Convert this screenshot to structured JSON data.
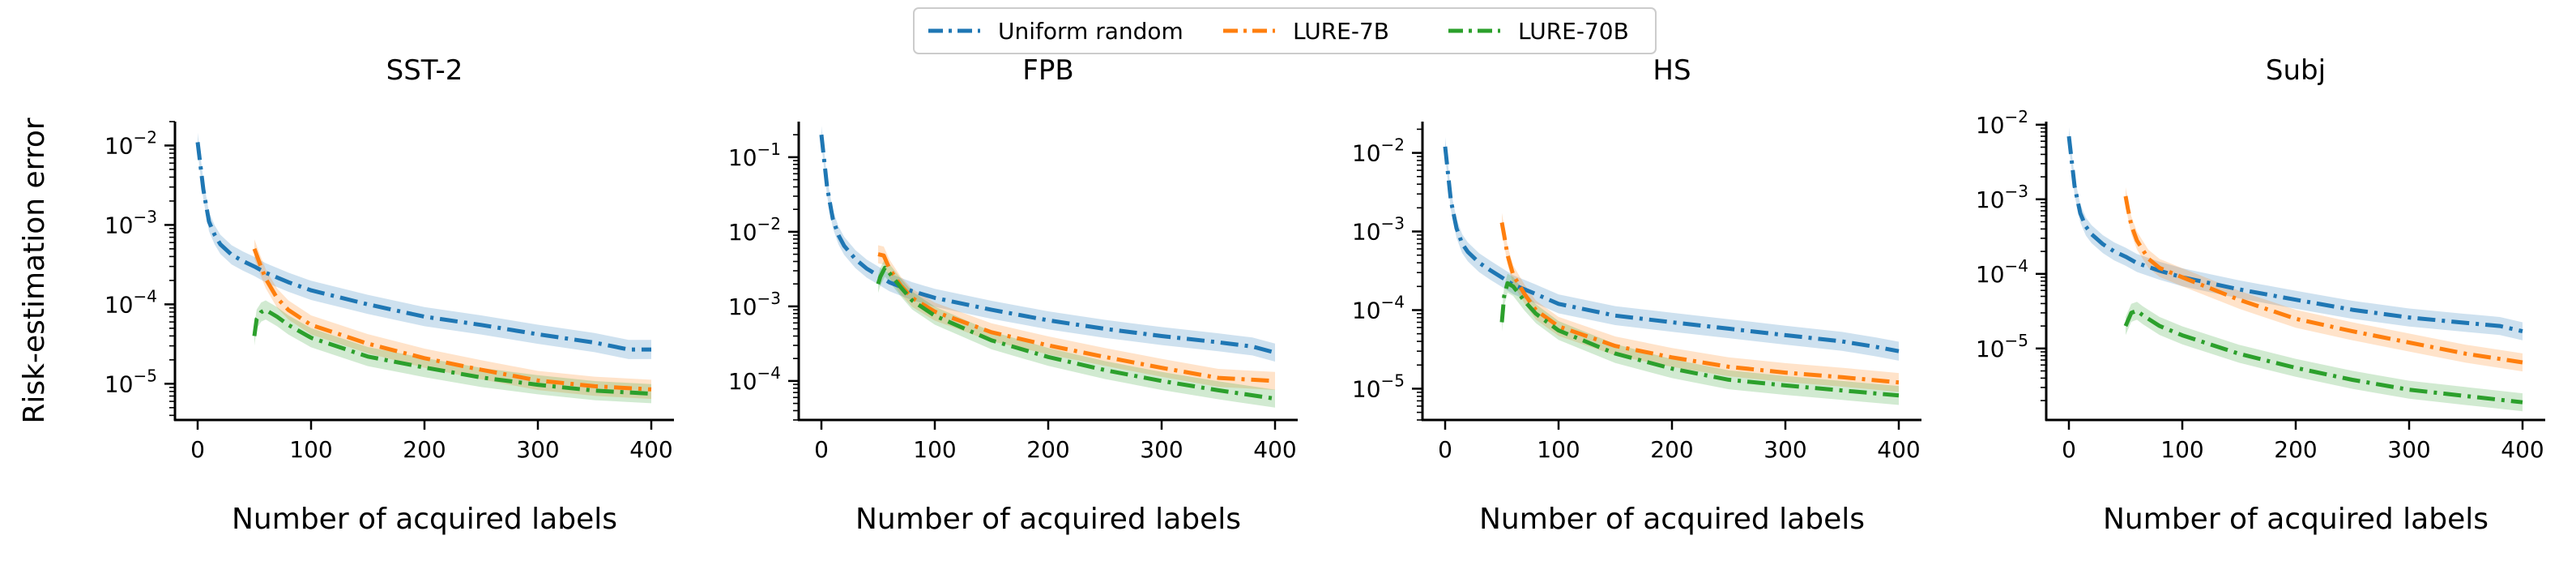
{
  "chart_data": [
    {
      "type": "line",
      "title": "SST-2",
      "xlabel": "Number of acquired labels",
      "ylabel": "Risk-estimation error",
      "xlim": [
        -20,
        420
      ],
      "xticks": [
        0,
        100,
        200,
        300,
        400
      ],
      "yscale": "log",
      "ylim": [
        3.5e-06,
        0.02
      ],
      "yticks": [
        {
          "value": 1e-05,
          "label": "10",
          "exp": "−5"
        },
        {
          "value": 0.0001,
          "label": "10",
          "exp": "−4"
        },
        {
          "value": 0.001,
          "label": "10",
          "exp": "−3"
        },
        {
          "value": 0.01,
          "label": "10",
          "exp": "−2"
        }
      ],
      "series": [
        {
          "name": "Uniform random",
          "color": "#1f77b4",
          "x": [
            0,
            5,
            10,
            15,
            20,
            30,
            40,
            50,
            60,
            80,
            100,
            150,
            200,
            250,
            300,
            350,
            380,
            400
          ],
          "y": [
            0.011,
            0.0028,
            0.0011,
            0.00075,
            0.00057,
            0.00042,
            0.00035,
            0.0003,
            0.00025,
            0.00019,
            0.00015,
            0.0001,
            7e-05,
            5.5e-05,
            4.2e-05,
            3.3e-05,
            2.7e-05,
            2.7e-05
          ]
        },
        {
          "name": "LURE-7B",
          "color": "#ff7f0e",
          "x": [
            50,
            55,
            60,
            70,
            80,
            100,
            150,
            200,
            250,
            300,
            350,
            400
          ],
          "y": [
            0.0005,
            0.00032,
            0.00021,
            0.00012,
            8.5e-05,
            5.5e-05,
            3.2e-05,
            2.1e-05,
            1.5e-05,
            1.1e-05,
            9.3e-06,
            8.5e-06
          ]
        },
        {
          "name": "LURE-70B",
          "color": "#2ca02c",
          "x": [
            50,
            52,
            56,
            60,
            70,
            80,
            100,
            150,
            200,
            250,
            300,
            350,
            400
          ],
          "y": [
            4e-05,
            6.5e-05,
            8e-05,
            8.5e-05,
            7e-05,
            5.5e-05,
            3.8e-05,
            2.2e-05,
            1.6e-05,
            1.2e-05,
            9.7e-06,
            8.2e-06,
            7.5e-06
          ]
        }
      ]
    },
    {
      "type": "line",
      "title": "FPB",
      "xlabel": "Number of acquired labels",
      "ylabel": "",
      "xlim": [
        -20,
        420
      ],
      "xticks": [
        0,
        100,
        200,
        300,
        400
      ],
      "yscale": "log",
      "ylim": [
        3e-05,
        0.3
      ],
      "yticks": [
        {
          "value": 0.0001,
          "label": "10",
          "exp": "−4"
        },
        {
          "value": 0.001,
          "label": "10",
          "exp": "−3"
        },
        {
          "value": 0.01,
          "label": "10",
          "exp": "−2"
        },
        {
          "value": 0.1,
          "label": "10",
          "exp": "−1"
        }
      ],
      "series": [
        {
          "name": "Uniform random",
          "color": "#1f77b4",
          "x": [
            0,
            5,
            10,
            15,
            20,
            30,
            40,
            50,
            60,
            80,
            100,
            150,
            200,
            250,
            300,
            350,
            380,
            400
          ],
          "y": [
            0.2,
            0.04,
            0.015,
            0.009,
            0.0065,
            0.0043,
            0.0032,
            0.0026,
            0.0021,
            0.0016,
            0.0013,
            0.0009,
            0.00065,
            0.0005,
            0.0004,
            0.00033,
            0.00029,
            0.00024
          ]
        },
        {
          "name": "LURE-7B",
          "color": "#ff7f0e",
          "x": [
            50,
            55,
            60,
            70,
            80,
            100,
            150,
            200,
            250,
            300,
            350,
            400
          ],
          "y": [
            0.005,
            0.0048,
            0.0032,
            0.0019,
            0.0013,
            0.00085,
            0.00045,
            0.0003,
            0.00021,
            0.00015,
            0.00011,
            0.0001
          ]
        },
        {
          "name": "LURE-70B",
          "color": "#2ca02c",
          "x": [
            50,
            52,
            56,
            60,
            70,
            80,
            100,
            150,
            200,
            250,
            300,
            350,
            400
          ],
          "y": [
            0.002,
            0.0025,
            0.0033,
            0.0028,
            0.0018,
            0.0012,
            0.00075,
            0.00035,
            0.00021,
            0.00014,
            0.0001,
            7.5e-05,
            5.8e-05
          ]
        }
      ]
    },
    {
      "type": "line",
      "title": "HS",
      "xlabel": "Number of acquired labels",
      "ylabel": "",
      "xlim": [
        -20,
        420
      ],
      "xticks": [
        0,
        100,
        200,
        300,
        400
      ],
      "yscale": "log",
      "ylim": [
        4e-06,
        0.025
      ],
      "yticks": [
        {
          "value": 1e-05,
          "label": "10",
          "exp": "−5"
        },
        {
          "value": 0.0001,
          "label": "10",
          "exp": "−4"
        },
        {
          "value": 0.001,
          "label": "10",
          "exp": "−3"
        },
        {
          "value": 0.01,
          "label": "10",
          "exp": "−2"
        }
      ],
      "series": [
        {
          "name": "Uniform random",
          "color": "#1f77b4",
          "x": [
            0,
            5,
            10,
            15,
            20,
            30,
            40,
            50,
            60,
            80,
            100,
            150,
            200,
            250,
            300,
            350,
            380,
            400
          ],
          "y": [
            0.012,
            0.0025,
            0.0011,
            0.0007,
            0.00055,
            0.0004,
            0.00032,
            0.00026,
            0.00021,
            0.00016,
            0.00012,
            8.5e-05,
            7e-05,
            5.8e-05,
            4.8e-05,
            4e-05,
            3.4e-05,
            3e-05
          ]
        },
        {
          "name": "LURE-7B",
          "color": "#ff7f0e",
          "x": [
            50,
            52,
            55,
            60,
            70,
            80,
            100,
            150,
            200,
            250,
            300,
            350,
            400
          ],
          "y": [
            0.0013,
            0.0009,
            0.0005,
            0.00028,
            0.00016,
            0.0001,
            6.2e-05,
            3.5e-05,
            2.5e-05,
            1.9e-05,
            1.6e-05,
            1.4e-05,
            1.2e-05
          ]
        },
        {
          "name": "LURE-70B",
          "color": "#2ca02c",
          "x": [
            50,
            52,
            55,
            60,
            70,
            80,
            100,
            150,
            200,
            250,
            300,
            350,
            400
          ],
          "y": [
            7e-05,
            0.00015,
            0.00022,
            0.0002,
            0.00013,
            9e-05,
            5.5e-05,
            2.8e-05,
            1.8e-05,
            1.3e-05,
            1.1e-05,
            9.5e-06,
            8.2e-06
          ]
        }
      ]
    },
    {
      "type": "line",
      "title": "Subj",
      "xlabel": "Number of acquired labels",
      "ylabel": "",
      "xlim": [
        -20,
        420
      ],
      "xticks": [
        0,
        100,
        200,
        300,
        400
      ],
      "yscale": "log",
      "ylim": [
        1.1e-06,
        0.011
      ],
      "yticks": [
        {
          "value": 1e-05,
          "label": "10",
          "exp": "−5"
        },
        {
          "value": 0.0001,
          "label": "10",
          "exp": "−4"
        },
        {
          "value": 0.001,
          "label": "10",
          "exp": "−3"
        },
        {
          "value": 0.01,
          "label": "10",
          "exp": "−2"
        }
      ],
      "series": [
        {
          "name": "Uniform random",
          "color": "#1f77b4",
          "x": [
            0,
            5,
            10,
            15,
            20,
            30,
            40,
            50,
            60,
            80,
            100,
            150,
            200,
            250,
            300,
            350,
            380,
            400
          ],
          "y": [
            0.007,
            0.0015,
            0.00065,
            0.00043,
            0.00034,
            0.00025,
            0.0002,
            0.00017,
            0.00014,
            0.00011,
            9e-05,
            6.2e-05,
            4.5e-05,
            3.3e-05,
            2.6e-05,
            2.2e-05,
            2e-05,
            1.7e-05
          ]
        },
        {
          "name": "LURE-7B",
          "color": "#ff7f0e",
          "x": [
            50,
            52,
            55,
            60,
            70,
            80,
            100,
            150,
            200,
            250,
            300,
            350,
            400
          ],
          "y": [
            0.0011,
            0.00075,
            0.00045,
            0.00028,
            0.00016,
            0.00012,
            9e-05,
            4.5e-05,
            2.5e-05,
            1.7e-05,
            1.2e-05,
            8.5e-06,
            6.5e-06
          ]
        },
        {
          "name": "LURE-70B",
          "color": "#2ca02c",
          "x": [
            50,
            55,
            60,
            65,
            70,
            80,
            100,
            150,
            200,
            250,
            300,
            350,
            400
          ],
          "y": [
            2e-05,
            3e-05,
            3.2e-05,
            2.8e-05,
            2.5e-05,
            2e-05,
            1.5e-05,
            8.5e-06,
            5.5e-06,
            3.8e-06,
            2.8e-06,
            2.3e-06,
            1.9e-06
          ]
        }
      ]
    }
  ],
  "legend": {
    "placement": "top-center",
    "entries": [
      {
        "label": "Uniform random",
        "color": "#1f77b4"
      },
      {
        "label": "LURE-7B",
        "color": "#ff7f0e"
      },
      {
        "label": "LURE-70B",
        "color": "#2ca02c"
      }
    ]
  }
}
